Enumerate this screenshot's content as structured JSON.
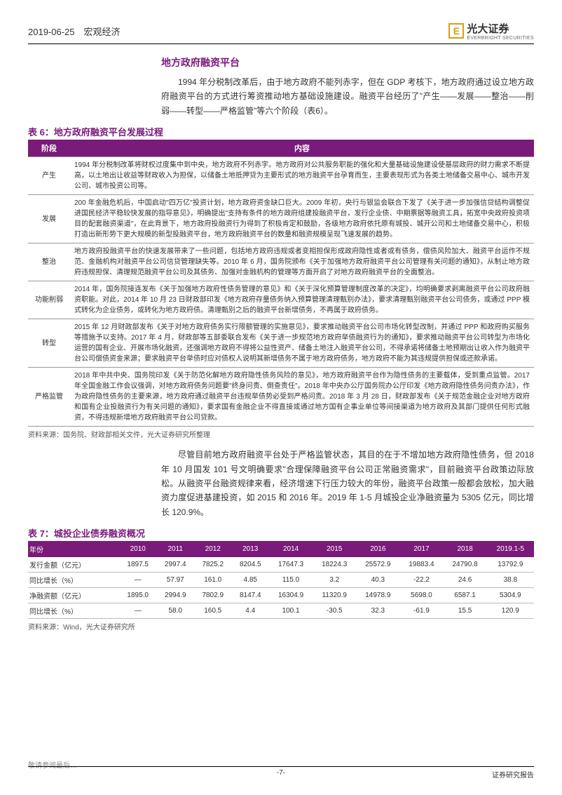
{
  "header": {
    "date_section": "2019-06-25　宏观经济",
    "logo_letter": "E",
    "logo_cn": "光大证券",
    "logo_en": "EVERBRIGHT SECURITIES"
  },
  "section_title": "地方政府融资平台",
  "para1": "1994 年分税制改革后，由于地方政府不能列赤字，但在 GDP 考核下，地方政府通过设立地方政府融资平台的方式进行筹资推动地方基础设施建设。融资平台经历了\"产生——发展——整治——削弱——转型——严格监管\"等六个阶段（表6）。",
  "table6": {
    "title": "表 6：地方政府融资平台发展过程",
    "headers": [
      "阶段",
      "内容"
    ],
    "rows": [
      {
        "stage": "产生",
        "content": "1994 年分税制改革将财权过度集中到中央，地方政府不列赤字。地方政府对公共服务职能的强化和大量基础设施建设使基层政府的财力需求不断提高，以土地出让收益等财政收入为担保，以储备土地抵押贷为主要形式的地方融资平台孕育而生，主要表现形式为各类土地储备交易中心、城市开发公司、城市投资公司等。"
      },
      {
        "stage": "发展",
        "content": "200 年金融危机后，中国启动\"四万亿\"投资计划，地方政府资金缺口巨大。2009 年初，央行与银监会联合下发了《关于进一步加强信贷结构调整促进国民经济平稳较快发展的指导意见》，明确提出\"支持有条件的地方政府组建投融资平台，发行企业债、中期票据等融资工具，拓宽中央政府投资项目的配套融资渠道\"，在此背景下，地方政府投融资行为得到了积极肯定和鼓励，各级地方政府依托原有城投、城开公司和土地储备交易中心，积极打造出新形势下更大规模的新型投融资平台，地方政府融资平台的数量和融资规模呈现飞速发展的趋势。"
      },
      {
        "stage": "整治",
        "content": "地方政府投融资平台的快速发展带来了一些问题，包括地方政府违规或者变相担保形成政府隐性或者或有债务，偿债风险加大、融资平台运作不规范、金融机构对融资平台公司信贷管理缺失等。2010 年 6 月，国务院颁布《关于加强地方政府融资平台公司管理有关问题的通知》，从制止地方政府违规担保、清理规范融资平台公司及其债务、加强对金融机构的管理等方面开启了对地方政府融资平台的全面整治。"
      },
      {
        "stage": "功能削弱",
        "content": "2014 年，国务院接连发布《关于加强地方政府性债务管理的意见》和《关于深化预算管理制度改革的决定》，均明确要求剥离融资平台公司政府融资职能。对此，2014 年 10 月 23 日财政部印发《地方政府存量债务纳入预算管理清理甄别办法》，要求清理甄别融资平台公司债务，或通过 PPP 模式转化为企业债务，或转化为地方政府债。清理甄别之后的融资平台新增债务，不再属于政府债务。"
      },
      {
        "stage": "转型",
        "content": "2015 年 12 月财政部发布《关于对地方政府债务实行限额管理的实施意见》，要求推动融资平台公司市场化转型改制，并通过 PPP 和政府购买服务等措施予以支持。2017 年 4 月，财政部等五部委联合发布《关于进一步规范地方政府举债融资行为的通知》，要求推动融资平台公司转型为市场化运营的国有企业、开展市场化融资，还强调地方政府不得将公益性资产、储备土地注入融资平台公司，不得承诺将储备土地预期出让收入作为融资平台公司偿债资金来源；要求融资平台举债时应对债权人说明其新增债务不属于地方政府债务，地方政府不能为其违规提供担保或还款承诺。"
      },
      {
        "stage": "严格监管",
        "content": "2018 年中共中央、国务院印发《关于防范化解地方政府隐性债务风险的意见》，地方政府融资平台作为隐性债务的主要载体，受到重点监管。2017 年全国金融工作会议强调，对地方政府债务问题要\"终身问责、倒查责任\"。2018 年中央办公厅国务院办公厅印发《地方政府隐性债务问责办法》，作为政府隐性债务的主要来源，地方政府通过融资平台违规举债势必受到严格问责。2018 年 3 月 28 日，财政部发布《关于规范金融企业对地方政府和国有企业投融资行为有关问题的通知》，要求国有金融企业不得直接或通过地方国有企事业单位等间接渠道为地方政府及其部门提供任何形式融资，不得违规新增地方政府融资平台公司贷款。"
      }
    ],
    "source": "资料来源：国务院、财政部相关文件，光大证券研究所整理"
  },
  "para2": "尽管目前地方政府融资平台处于严格监管状态，其目的在于不增加地方政府隐性债务，但 2018 年 10 月国发 101 号文明确要求\"合理保障融资平台公司正常融资需求\"，目前融资平台政策边际放松。从融资平台融资规律来看，经济增速下行压力较大的年份，融资平台政策一般都会放松，加大融资力度促进基建投资，如 2015 和 2016 年。2019 年 1-5 月城投企业净融资量为 5305 亿元，同比增长 120.9%。",
  "table7": {
    "title": "表 7：城投企业债券融资概况",
    "col_headers": [
      "年份",
      "2010",
      "2011",
      "2012",
      "2013",
      "2014",
      "2015",
      "2016",
      "2017",
      "2018",
      "2019.1-5"
    ],
    "rows": [
      {
        "label": "发行金额（亿元）",
        "vals": [
          "1897.5",
          "2997.4",
          "7825.2",
          "8204.5",
          "17647.3",
          "18224.3",
          "25572.9",
          "19883.4",
          "24790.8",
          "13792.9"
        ]
      },
      {
        "label": "同比增长（%）",
        "vals": [
          "—",
          "57.97",
          "161.0",
          "4.85",
          "115.0",
          "3.2",
          "40.3",
          "-22.2",
          "24.6",
          "38.8"
        ]
      },
      {
        "label": "净融资额（亿元）",
        "vals": [
          "1895.0",
          "2994.9",
          "7802.9",
          "8147.4",
          "16304.9",
          "11320.9",
          "14978.9",
          "5698.0",
          "6587.1",
          "5304.9"
        ]
      },
      {
        "label": "同比增长（%）",
        "vals": [
          "—",
          "58.0",
          "160.5",
          "4.4",
          "100.1",
          "-30.5",
          "32.3",
          "-61.9",
          "15.5",
          "120.9"
        ]
      }
    ],
    "source": "资料来源：Wind，光大证券研究所"
  },
  "footer": {
    "left_cut": "敬请参阅最后…",
    "page": "-7-",
    "right": "证券研究报告"
  },
  "colors": {
    "brand_purple": "#7a1a7a",
    "brand_gold": "#d4a017",
    "text": "#333333",
    "rule": "#000000"
  }
}
